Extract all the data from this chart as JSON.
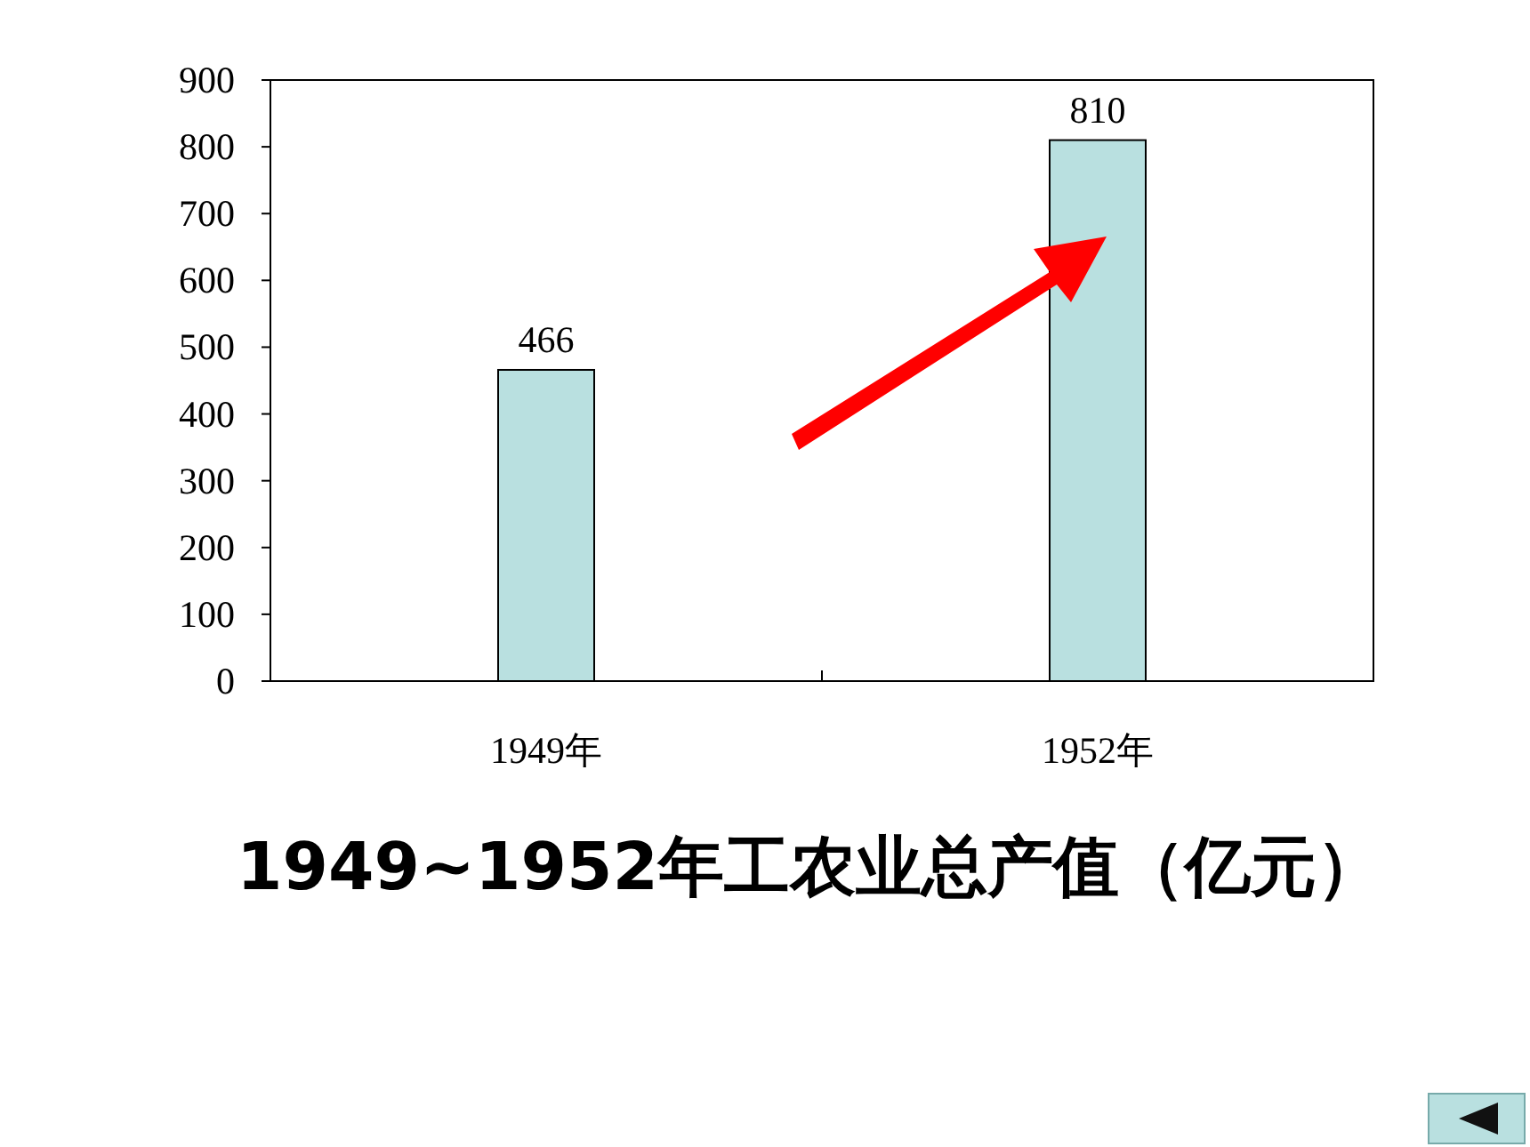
{
  "chart_data": {
    "type": "bar",
    "title": "1949~1952年工农业总产值（亿元）",
    "categories": [
      "1949年",
      "1952年"
    ],
    "values": [
      466,
      810
    ],
    "color": "#b9e0e0",
    "ylim": [
      0,
      900
    ],
    "yticks": [
      0,
      100,
      200,
      300,
      400,
      500,
      600,
      700,
      800,
      900
    ],
    "data_labels": true,
    "grid": false
  }
}
